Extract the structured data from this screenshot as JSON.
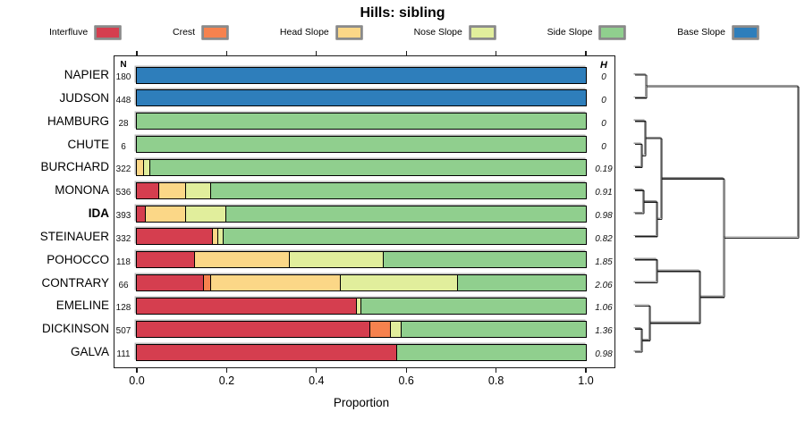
{
  "title": "Hills: sibling",
  "chart_data": {
    "type": "bar",
    "orientation": "horizontal",
    "stacked": true,
    "title": "Hills: sibling",
    "xlabel": "Proportion",
    "xlim": [
      0,
      1
    ],
    "xtick_labels": [
      "0.0",
      "0.2",
      "0.4",
      "0.6",
      "0.8",
      "1.0"
    ],
    "n_header": "N",
    "h_header": "H",
    "legend_position": "top",
    "segment_order": [
      "Interfluve",
      "Crest",
      "Head Slope",
      "Nose Slope",
      "Side Slope",
      "Base Slope"
    ],
    "colors": {
      "Interfluve": "#D53E4F",
      "Crest": "#F6824E",
      "Head Slope": "#FBD787",
      "Nose Slope": "#E1EE9C",
      "Side Slope": "#90CF8E",
      "Base Slope": "#2E7EBB"
    },
    "rows": [
      {
        "name": "NAPIER",
        "n": "180",
        "h": "0",
        "bold": false,
        "segments": [
          [
            "Base Slope",
            1.0
          ]
        ]
      },
      {
        "name": "JUDSON",
        "n": "448",
        "h": "0",
        "bold": false,
        "segments": [
          [
            "Base Slope",
            1.0
          ]
        ]
      },
      {
        "name": "HAMBURG",
        "n": "28",
        "h": "0",
        "bold": false,
        "segments": [
          [
            "Side Slope",
            1.0
          ]
        ]
      },
      {
        "name": "CHUTE",
        "n": "6",
        "h": "0",
        "bold": false,
        "segments": [
          [
            "Side Slope",
            1.0
          ]
        ]
      },
      {
        "name": "BURCHARD",
        "n": "322",
        "h": "0.19",
        "bold": false,
        "segments": [
          [
            "Head Slope",
            0.015
          ],
          [
            "Nose Slope",
            0.015
          ],
          [
            "Side Slope",
            0.97
          ]
        ]
      },
      {
        "name": "MONONA",
        "n": "536",
        "h": "0.91",
        "bold": false,
        "segments": [
          [
            "Interfluve",
            0.05
          ],
          [
            "Head Slope",
            0.06
          ],
          [
            "Nose Slope",
            0.055
          ],
          [
            "Side Slope",
            0.835
          ]
        ]
      },
      {
        "name": "IDA",
        "n": "393",
        "h": "0.98",
        "bold": true,
        "segments": [
          [
            "Interfluve",
            0.02
          ],
          [
            "Head Slope",
            0.09
          ],
          [
            "Nose Slope",
            0.09
          ],
          [
            "Side Slope",
            0.8
          ]
        ]
      },
      {
        "name": "STEINAUER",
        "n": "332",
        "h": "0.82",
        "bold": false,
        "segments": [
          [
            "Interfluve",
            0.17
          ],
          [
            "Head Slope",
            0.012
          ],
          [
            "Nose Slope",
            0.012
          ],
          [
            "Side Slope",
            0.806
          ]
        ]
      },
      {
        "name": "POHOCCO",
        "n": "118",
        "h": "1.85",
        "bold": false,
        "segments": [
          [
            "Interfluve",
            0.13
          ],
          [
            "Head Slope",
            0.21
          ],
          [
            "Nose Slope",
            0.21
          ],
          [
            "Side Slope",
            0.45
          ]
        ]
      },
      {
        "name": "CONTRARY",
        "n": "66",
        "h": "2.06",
        "bold": false,
        "segments": [
          [
            "Interfluve",
            0.15
          ],
          [
            "Crest",
            0.015
          ],
          [
            "Head Slope",
            0.29
          ],
          [
            "Nose Slope",
            0.26
          ],
          [
            "Side Slope",
            0.285
          ]
        ]
      },
      {
        "name": "EMELINE",
        "n": "128",
        "h": "1.06",
        "bold": false,
        "segments": [
          [
            "Interfluve",
            0.49
          ],
          [
            "Nose Slope",
            0.01
          ],
          [
            "Side Slope",
            0.5
          ]
        ]
      },
      {
        "name": "DICKINSON",
        "n": "507",
        "h": "1.36",
        "bold": false,
        "segments": [
          [
            "Interfluve",
            0.52
          ],
          [
            "Crest",
            0.045
          ],
          [
            "Nose Slope",
            0.025
          ],
          [
            "Side Slope",
            0.41
          ]
        ]
      },
      {
        "name": "GALVA",
        "n": "111",
        "h": "0.98",
        "bold": false,
        "segments": [
          [
            "Interfluve",
            0.58
          ],
          [
            "Side Slope",
            0.42
          ]
        ]
      }
    ],
    "dendrogram": {
      "leaf_order": [
        "NAPIER",
        "JUDSON",
        "HAMBURG",
        "CHUTE",
        "BURCHARD",
        "MONONA",
        "IDA",
        "STEINAUER",
        "POHOCCO",
        "CONTRARY",
        "EMELINE",
        "DICKINSON",
        "GALVA"
      ],
      "merges": [
        {
          "id": "M0",
          "a": "NAPIER",
          "b": "JUDSON",
          "h": 0.071
        },
        {
          "id": "M1",
          "a": "CHUTE",
          "b": "BURCHARD",
          "h": 0.044
        },
        {
          "id": "M2",
          "a": "HAMBURG",
          "b": "M1",
          "h": 0.066
        },
        {
          "id": "M3",
          "a": "MONONA",
          "b": "IDA",
          "h": 0.055
        },
        {
          "id": "M4",
          "a": "M3",
          "b": "STEINAUER",
          "h": 0.137
        },
        {
          "id": "M5",
          "a": "M2",
          "b": "M4",
          "h": 0.164
        },
        {
          "id": "M6",
          "a": "POHOCCO",
          "b": "CONTRARY",
          "h": 0.137
        },
        {
          "id": "M7",
          "a": "DICKINSON",
          "b": "GALVA",
          "h": 0.044
        },
        {
          "id": "M8",
          "a": "EMELINE",
          "b": "M7",
          "h": 0.093
        },
        {
          "id": "M9",
          "a": "M6",
          "b": "M8",
          "h": 0.399
        },
        {
          "id": "M10",
          "a": "M5",
          "b": "M9",
          "h": 0.546
        },
        {
          "id": "M11",
          "a": "M0",
          "b": "M10",
          "h": 1.0
        }
      ]
    }
  }
}
